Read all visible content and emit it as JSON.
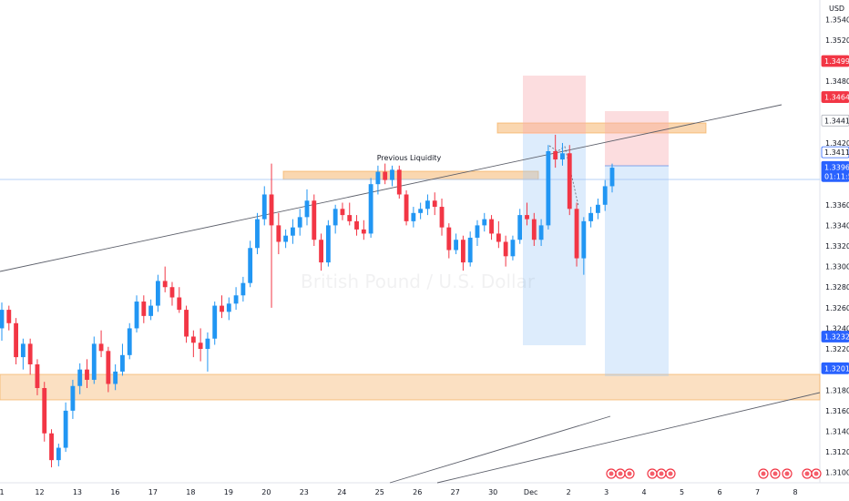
{
  "chart_data": {
    "type": "candlestick",
    "currency": "USD",
    "watermark": "British Pound / U.S. Dollar",
    "annotation": "Previous Liquidity",
    "y_ticks": [
      1.31,
      1.312,
      1.314,
      1.316,
      1.318,
      1.322,
      1.324,
      1.326,
      1.328,
      1.33,
      1.332,
      1.334,
      1.336,
      1.342,
      1.348,
      1.352,
      1.354
    ],
    "y_tick_labels": [
      "1.31000",
      "1.31200",
      "1.31400",
      "1.31600",
      "1.31800",
      "1.32200",
      "1.32400",
      "1.32600",
      "1.32800",
      "1.33000",
      "1.33200",
      "1.33400",
      "1.33600",
      "1.34200",
      "1.34800",
      "1.35200",
      "1.35400"
    ],
    "price_badges": [
      {
        "value": 1.34996,
        "label": "1.34996",
        "bg": "#f23645",
        "fg": "#ffffff"
      },
      {
        "value": 1.34646,
        "label": "1.34646",
        "bg": "#f23645",
        "fg": "#ffffff"
      },
      {
        "value": 1.34418,
        "label": "1.34418",
        "bg": "#ffffff",
        "fg": "#131722",
        "border": "#b2b5be"
      },
      {
        "value": 1.3411,
        "label": "1.34110",
        "bg": "#ffffff",
        "fg": "#131722",
        "border": "#2962ff"
      },
      {
        "value": 1.33967,
        "label": "1.33967",
        "bg": "#2962ff",
        "fg": "#ffffff",
        "sub": "01:11:59"
      },
      {
        "value": 1.3232,
        "label": "1.32320",
        "bg": "#2962ff",
        "fg": "#ffffff"
      },
      {
        "value": 1.32012,
        "label": "1.32012",
        "bg": "#2962ff",
        "fg": "#ffffff"
      }
    ],
    "x_ticks": [
      {
        "x": 0,
        "label": "1"
      },
      {
        "x": 1,
        "label": "12"
      },
      {
        "x": 2,
        "label": "13"
      },
      {
        "x": 3,
        "label": "16"
      },
      {
        "x": 4,
        "label": "17"
      },
      {
        "x": 5,
        "label": "18"
      },
      {
        "x": 6,
        "label": "19"
      },
      {
        "x": 7,
        "label": "20"
      },
      {
        "x": 8,
        "label": "23"
      },
      {
        "x": 9,
        "label": "24"
      },
      {
        "x": 10,
        "label": "25"
      },
      {
        "x": 11,
        "label": "26"
      },
      {
        "x": 12,
        "label": "27"
      },
      {
        "x": 13,
        "label": "30"
      },
      {
        "x": 14,
        "label": "Dec"
      },
      {
        "x": 15,
        "label": "2"
      },
      {
        "x": 16,
        "label": "3"
      },
      {
        "x": 17,
        "label": "4"
      },
      {
        "x": 18,
        "label": "5"
      },
      {
        "x": 19,
        "label": "6"
      },
      {
        "x": 20,
        "label": "7"
      },
      {
        "x": 21,
        "label": "8"
      }
    ],
    "candles": [
      [
        1.324,
        1.3265,
        1.3228,
        1.3258
      ],
      [
        1.3258,
        1.3262,
        1.3238,
        1.3245
      ],
      [
        1.3245,
        1.325,
        1.3205,
        1.3212
      ],
      [
        1.3212,
        1.323,
        1.32,
        1.3225
      ],
      [
        1.3225,
        1.323,
        1.3195,
        1.3205
      ],
      [
        1.3205,
        1.321,
        1.3175,
        1.3182
      ],
      [
        1.3182,
        1.3188,
        1.313,
        1.3138
      ],
      [
        1.3138,
        1.3142,
        1.3105,
        1.3112
      ],
      [
        1.3112,
        1.3128,
        1.3106,
        1.3124
      ],
      [
        1.3124,
        1.3168,
        1.312,
        1.316
      ],
      [
        1.316,
        1.319,
        1.3152,
        1.3184
      ],
      [
        1.3184,
        1.3206,
        1.3176,
        1.32
      ],
      [
        1.32,
        1.321,
        1.3182,
        1.319
      ],
      [
        1.319,
        1.3232,
        1.3186,
        1.3225
      ],
      [
        1.3225,
        1.3238,
        1.3212,
        1.3218
      ],
      [
        1.3218,
        1.3222,
        1.3178,
        1.3186
      ],
      [
        1.3186,
        1.3205,
        1.318,
        1.3198
      ],
      [
        1.3198,
        1.3225,
        1.3194,
        1.3214
      ],
      [
        1.3214,
        1.3245,
        1.321,
        1.324
      ],
      [
        1.324,
        1.3272,
        1.3236,
        1.3266
      ],
      [
        1.3266,
        1.3272,
        1.3245,
        1.3252
      ],
      [
        1.3252,
        1.3268,
        1.3248,
        1.3262
      ],
      [
        1.3262,
        1.3292,
        1.3256,
        1.3286
      ],
      [
        1.3286,
        1.33,
        1.3275,
        1.328
      ],
      [
        1.328,
        1.3285,
        1.3262,
        1.327
      ],
      [
        1.327,
        1.328,
        1.3255,
        1.3258
      ],
      [
        1.3258,
        1.3262,
        1.3226,
        1.3232
      ],
      [
        1.3232,
        1.3238,
        1.3212,
        1.3226
      ],
      [
        1.3226,
        1.324,
        1.3208,
        1.322
      ],
      [
        1.322,
        1.3236,
        1.3198,
        1.323
      ],
      [
        1.323,
        1.3266,
        1.3224,
        1.3262
      ],
      [
        1.3262,
        1.3272,
        1.325,
        1.3256
      ],
      [
        1.3256,
        1.327,
        1.3248,
        1.3264
      ],
      [
        1.3264,
        1.328,
        1.3258,
        1.3272
      ],
      [
        1.3272,
        1.329,
        1.3266,
        1.3284
      ],
      [
        1.3284,
        1.3325,
        1.328,
        1.3318
      ],
      [
        1.3318,
        1.3352,
        1.3312,
        1.3346
      ],
      [
        1.3346,
        1.3378,
        1.334,
        1.337
      ],
      [
        1.337,
        1.34,
        1.326,
        1.334
      ],
      [
        1.334,
        1.3352,
        1.3312,
        1.3324
      ],
      [
        1.3324,
        1.3336,
        1.3318,
        1.333
      ],
      [
        1.333,
        1.3346,
        1.3322,
        1.3338
      ],
      [
        1.3338,
        1.3356,
        1.333,
        1.3348
      ],
      [
        1.3348,
        1.3375,
        1.334,
        1.3364
      ],
      [
        1.3364,
        1.337,
        1.332,
        1.3326
      ],
      [
        1.3326,
        1.3332,
        1.3296,
        1.3304
      ],
      [
        1.3304,
        1.3345,
        1.33,
        1.334
      ],
      [
        1.334,
        1.336,
        1.3332,
        1.3356
      ],
      [
        1.3356,
        1.3362,
        1.3345,
        1.335
      ],
      [
        1.335,
        1.3362,
        1.334,
        1.3344
      ],
      [
        1.3344,
        1.335,
        1.333,
        1.3336
      ],
      [
        1.3336,
        1.3345,
        1.3326,
        1.3332
      ],
      [
        1.3332,
        1.3386,
        1.3328,
        1.338
      ],
      [
        1.338,
        1.3398,
        1.337,
        1.3392
      ],
      [
        1.3392,
        1.34,
        1.338,
        1.3384
      ],
      [
        1.3384,
        1.3398,
        1.3378,
        1.3394
      ],
      [
        1.3394,
        1.3398,
        1.3366,
        1.337
      ],
      [
        1.337,
        1.3374,
        1.334,
        1.3344
      ],
      [
        1.3344,
        1.3358,
        1.3338,
        1.3352
      ],
      [
        1.3352,
        1.3362,
        1.3346,
        1.3356
      ],
      [
        1.3356,
        1.337,
        1.335,
        1.3364
      ],
      [
        1.3364,
        1.3372,
        1.335,
        1.3358
      ],
      [
        1.3358,
        1.3366,
        1.333,
        1.3338
      ],
      [
        1.3338,
        1.3342,
        1.3308,
        1.3316
      ],
      [
        1.3316,
        1.3332,
        1.3312,
        1.3326
      ],
      [
        1.3326,
        1.333,
        1.3296,
        1.3304
      ],
      [
        1.3304,
        1.3334,
        1.33,
        1.3328
      ],
      [
        1.3328,
        1.3345,
        1.332,
        1.334
      ],
      [
        1.334,
        1.3352,
        1.3334,
        1.3346
      ],
      [
        1.3346,
        1.335,
        1.3326,
        1.3332
      ],
      [
        1.3332,
        1.3344,
        1.3318,
        1.3324
      ],
      [
        1.3324,
        1.333,
        1.33,
        1.331
      ],
      [
        1.331,
        1.333,
        1.3306,
        1.3326
      ],
      [
        1.3326,
        1.3356,
        1.3322,
        1.335
      ],
      [
        1.335,
        1.3362,
        1.334,
        1.3346
      ],
      [
        1.3346,
        1.3352,
        1.332,
        1.3326
      ],
      [
        1.3326,
        1.3346,
        1.332,
        1.334
      ],
      [
        1.334,
        1.3418,
        1.3336,
        1.3412
      ],
      [
        1.3412,
        1.3428,
        1.3396,
        1.3404
      ],
      [
        1.3404,
        1.342,
        1.3398,
        1.341
      ],
      [
        1.341,
        1.3418,
        1.335,
        1.3356
      ],
      [
        1.3356,
        1.3362,
        1.33,
        1.3308
      ],
      [
        1.3308,
        1.3348,
        1.3292,
        1.3344
      ],
      [
        1.3344,
        1.3358,
        1.3338,
        1.3352
      ],
      [
        1.3352,
        1.3366,
        1.3346,
        1.336
      ],
      [
        1.336,
        1.3384,
        1.3354,
        1.3378
      ],
      [
        1.3378,
        1.34,
        1.3372,
        1.3396
      ]
    ]
  }
}
